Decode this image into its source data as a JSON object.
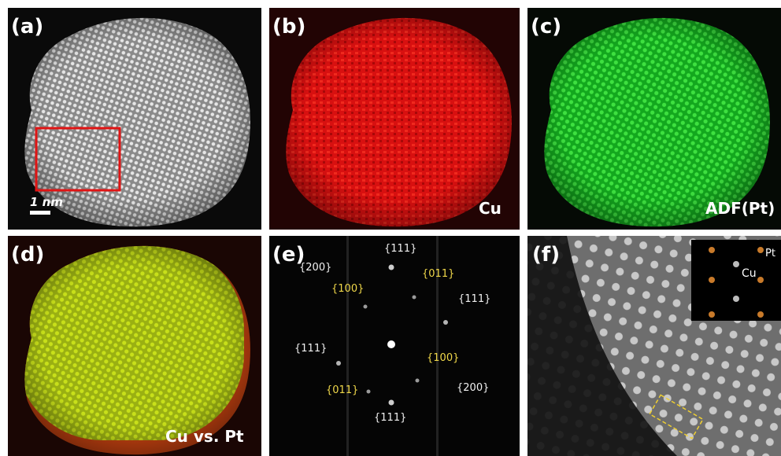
{
  "panels": [
    {
      "label": "(a)",
      "scale_bar": "1 nm"
    },
    {
      "label": "(b)",
      "caption": "Cu"
    },
    {
      "label": "(c)",
      "caption": "ADF(Pt)"
    },
    {
      "label": "(d)",
      "caption": "Cu vs. Pt"
    },
    {
      "label": "(e)",
      "spots": [
        "{111}",
        "{200}",
        "{100}",
        "{011}",
        "{111}",
        "{111}",
        "{100}",
        "{200}",
        "{011}",
        "{111}"
      ]
    },
    {
      "label": "(f)",
      "inset": [
        "Cu",
        "Pt"
      ]
    }
  ]
}
